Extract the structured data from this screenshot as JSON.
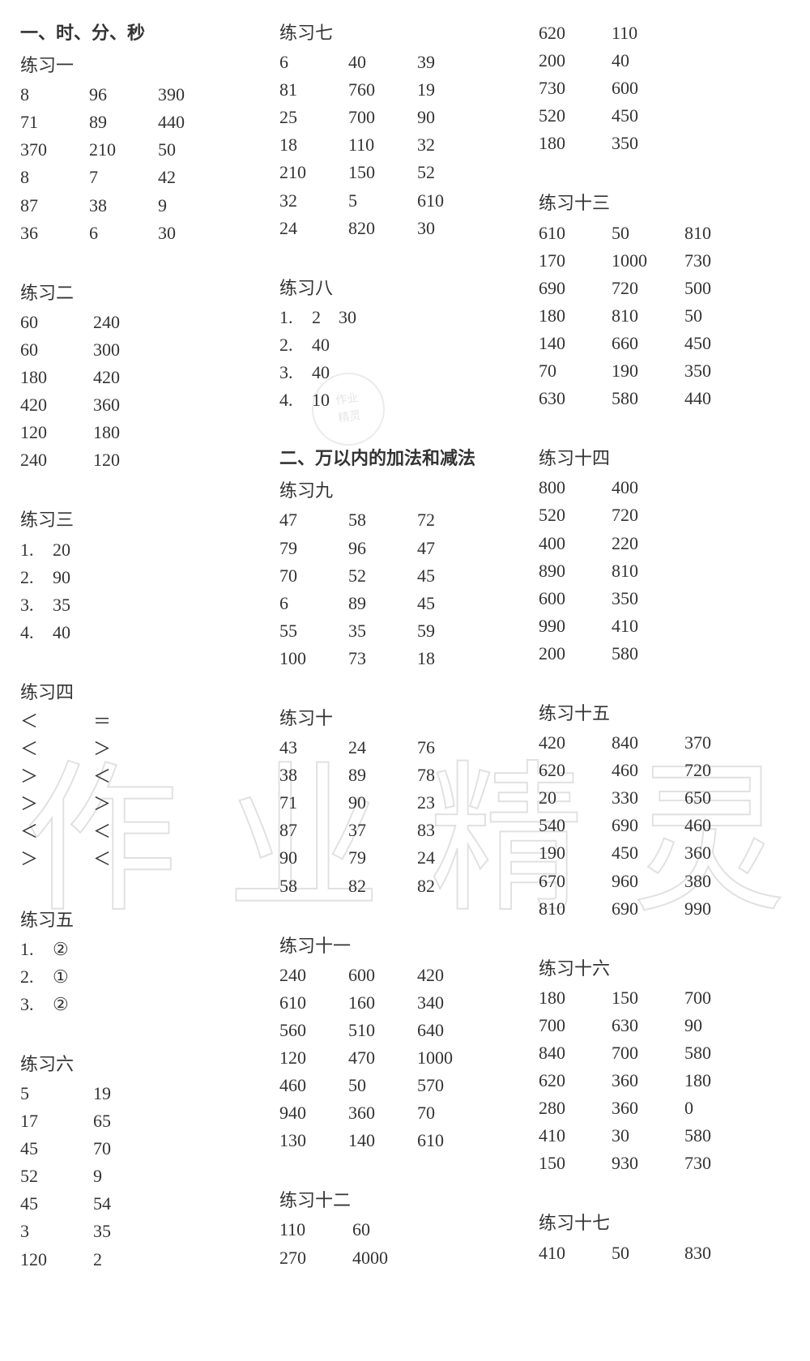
{
  "font_family": "SimSun",
  "font_size_pt": 16,
  "text_color": "#333333",
  "background_color": "#ffffff",
  "watermark_text": "作业精灵",
  "watermark_color": "#d9d9d9",
  "col1": {
    "chapter": "一、时、分、秒",
    "s1_title": "练习一",
    "s1": [
      [
        "8",
        "96",
        "390"
      ],
      [
        "71",
        "89",
        "440"
      ],
      [
        "370",
        "210",
        "50"
      ],
      [
        "8",
        "7",
        "42"
      ],
      [
        "87",
        "38",
        "9"
      ],
      [
        "36",
        "6",
        "30"
      ]
    ],
    "s2_title": "练习二",
    "s2": [
      [
        "60",
        "240"
      ],
      [
        "60",
        "300"
      ],
      [
        "180",
        "420"
      ],
      [
        "420",
        "360"
      ],
      [
        "120",
        "180"
      ],
      [
        "240",
        "120"
      ]
    ],
    "s3_title": "练习三",
    "s3": [
      [
        "1.",
        "20"
      ],
      [
        "2.",
        "90"
      ],
      [
        "3.",
        "35"
      ],
      [
        "4.",
        "40"
      ]
    ],
    "s4_title": "练习四",
    "s4": [
      [
        "＜",
        "＝"
      ],
      [
        "＜",
        "＞"
      ],
      [
        "＞",
        "＜"
      ],
      [
        "＞",
        "＞"
      ],
      [
        "＜",
        "＜"
      ],
      [
        "＞",
        "＜"
      ]
    ],
    "s5_title": "练习五",
    "s5": [
      [
        "1.",
        "②"
      ],
      [
        "2.",
        "①"
      ],
      [
        "3.",
        "②"
      ]
    ],
    "s6_title": "练习六",
    "s6": [
      [
        "5",
        "19"
      ],
      [
        "17",
        "65"
      ],
      [
        "45",
        "70"
      ],
      [
        "52",
        "9"
      ],
      [
        "45",
        "54"
      ],
      [
        "3",
        "35"
      ],
      [
        "120",
        "2"
      ]
    ]
  },
  "col2": {
    "s7_title": "练习七",
    "s7": [
      [
        "6",
        "40",
        "39"
      ],
      [
        "81",
        "760",
        "19"
      ],
      [
        "25",
        "700",
        "90"
      ],
      [
        "18",
        "110",
        "32"
      ],
      [
        "210",
        "150",
        "52"
      ],
      [
        "32",
        "5",
        "610"
      ],
      [
        "24",
        "820",
        "30"
      ]
    ],
    "s8_title": "练习八",
    "s8": [
      [
        "1.",
        "2　30"
      ],
      [
        "2.",
        "40"
      ],
      [
        "3.",
        "40"
      ],
      [
        "4.",
        "10"
      ]
    ],
    "chapter": "二、万以内的加法和减法",
    "s9_title": "练习九",
    "s9": [
      [
        "47",
        "58",
        "72"
      ],
      [
        "79",
        "96",
        "47"
      ],
      [
        "70",
        "52",
        "45"
      ],
      [
        "6",
        "89",
        "45"
      ],
      [
        "55",
        "35",
        "59"
      ],
      [
        "100",
        "73",
        "18"
      ]
    ],
    "s10_title": "练习十",
    "s10": [
      [
        "43",
        "24",
        "76"
      ],
      [
        "38",
        "89",
        "78"
      ],
      [
        "71",
        "90",
        "23"
      ],
      [
        "87",
        "37",
        "83"
      ],
      [
        "90",
        "79",
        "24"
      ],
      [
        "58",
        "82",
        "82"
      ]
    ],
    "s11_title": "练习十一",
    "s11": [
      [
        "240",
        "600",
        "420"
      ],
      [
        "610",
        "160",
        "340"
      ],
      [
        "560",
        "510",
        "640"
      ],
      [
        "120",
        "470",
        "1000"
      ],
      [
        "460",
        "50",
        "570"
      ],
      [
        "940",
        "360",
        "70"
      ],
      [
        "130",
        "140",
        "610"
      ]
    ],
    "s12_title": "练习十二",
    "s12": [
      [
        "110",
        "60"
      ],
      [
        "270",
        "4000"
      ]
    ]
  },
  "col3": {
    "s12b": [
      [
        "620",
        "110"
      ],
      [
        "200",
        "40"
      ],
      [
        "730",
        "600"
      ],
      [
        "520",
        "450"
      ],
      [
        "180",
        "350"
      ]
    ],
    "s13_title": "练习十三",
    "s13": [
      [
        "610",
        "50",
        "810"
      ],
      [
        "170",
        "1000",
        "730"
      ],
      [
        "690",
        "720",
        "500"
      ],
      [
        "180",
        "810",
        "50"
      ],
      [
        "140",
        "660",
        "450"
      ],
      [
        "70",
        "190",
        "350"
      ],
      [
        "630",
        "580",
        "440"
      ]
    ],
    "s14_title": "练习十四",
    "s14": [
      [
        "800",
        "400"
      ],
      [
        "520",
        "720"
      ],
      [
        "400",
        "220"
      ],
      [
        "890",
        "810"
      ],
      [
        "600",
        "350"
      ],
      [
        "990",
        "410"
      ],
      [
        "200",
        "580"
      ]
    ],
    "s15_title": "练习十五",
    "s15": [
      [
        "420",
        "840",
        "370"
      ],
      [
        "620",
        "460",
        "720"
      ],
      [
        "20",
        "330",
        "650"
      ],
      [
        "540",
        "690",
        "460"
      ],
      [
        "190",
        "450",
        "360"
      ],
      [
        "670",
        "960",
        "380"
      ],
      [
        "810",
        "690",
        "990"
      ]
    ],
    "s16_title": "练习十六",
    "s16": [
      [
        "180",
        "150",
        "700"
      ],
      [
        "700",
        "630",
        "90"
      ],
      [
        "840",
        "700",
        "580"
      ],
      [
        "620",
        "360",
        "180"
      ],
      [
        "280",
        "360",
        "0"
      ],
      [
        "410",
        "30",
        "580"
      ],
      [
        "150",
        "930",
        "730"
      ]
    ],
    "s17_title": "练习十七",
    "s17": [
      [
        "410",
        "50",
        "830"
      ]
    ]
  }
}
